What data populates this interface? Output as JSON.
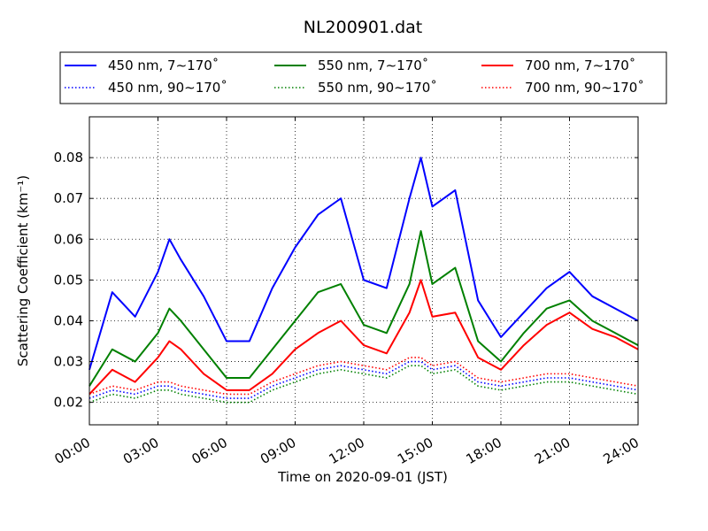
{
  "chart_data": {
    "type": "line",
    "title": "NL200901.dat",
    "xlabel": "Time on 2020-09-01 (JST)",
    "ylabel": "Scattering Coefficient (km⁻¹)",
    "xlim": [
      0,
      24
    ],
    "ylim": [
      0.0145,
      0.09
    ],
    "x_ticks": [
      "00:00",
      "03:00",
      "06:00",
      "09:00",
      "12:00",
      "15:00",
      "18:00",
      "21:00",
      "24:00"
    ],
    "y_ticks": [
      "0.02",
      "0.03",
      "0.04",
      "0.05",
      "0.06",
      "0.07",
      "0.08"
    ],
    "grid": true,
    "legend_position": "top",
    "x": [
      0,
      1,
      2,
      3,
      3.5,
      4,
      5,
      6,
      7,
      8,
      9,
      10,
      11,
      12,
      13,
      14,
      14.5,
      15,
      16,
      17,
      18,
      19,
      20,
      21,
      22,
      23,
      24
    ],
    "series": [
      {
        "name": "450 nm, 7∼170˚",
        "color": "#0000ff",
        "style": "solid",
        "values": [
          0.028,
          0.047,
          0.041,
          0.052,
          0.06,
          0.055,
          0.046,
          0.035,
          0.035,
          0.048,
          0.058,
          0.066,
          0.07,
          0.05,
          0.048,
          0.07,
          0.08,
          0.068,
          0.072,
          0.045,
          0.036,
          0.042,
          0.048,
          0.052,
          0.046,
          0.043,
          0.04
        ]
      },
      {
        "name": "550 nm, 7∼170˚",
        "color": "#008000",
        "style": "solid",
        "values": [
          0.024,
          0.033,
          0.03,
          0.037,
          0.043,
          0.04,
          0.033,
          0.026,
          0.026,
          0.033,
          0.04,
          0.047,
          0.049,
          0.039,
          0.037,
          0.049,
          0.062,
          0.049,
          0.053,
          0.035,
          0.03,
          0.037,
          0.043,
          0.045,
          0.04,
          0.037,
          0.034
        ]
      },
      {
        "name": "700 nm, 7∼170˚",
        "color": "#ff0000",
        "style": "solid",
        "values": [
          0.022,
          0.028,
          0.025,
          0.031,
          0.035,
          0.033,
          0.027,
          0.023,
          0.023,
          0.027,
          0.033,
          0.037,
          0.04,
          0.034,
          0.032,
          0.042,
          0.05,
          0.041,
          0.042,
          0.031,
          0.028,
          0.034,
          0.039,
          0.042,
          0.038,
          0.036,
          0.033
        ]
      },
      {
        "name": "450 nm, 90∼170˚",
        "color": "#0000ff",
        "style": "dotted",
        "values": [
          0.021,
          0.023,
          0.022,
          0.024,
          0.024,
          0.023,
          0.022,
          0.021,
          0.021,
          0.024,
          0.026,
          0.028,
          0.029,
          0.028,
          0.027,
          0.03,
          0.03,
          0.028,
          0.029,
          0.025,
          0.024,
          0.025,
          0.026,
          0.026,
          0.025,
          0.024,
          0.023
        ]
      },
      {
        "name": "550 nm, 90∼170˚",
        "color": "#008000",
        "style": "dotted",
        "values": [
          0.02,
          0.022,
          0.021,
          0.023,
          0.023,
          0.022,
          0.021,
          0.02,
          0.02,
          0.023,
          0.025,
          0.027,
          0.028,
          0.027,
          0.026,
          0.029,
          0.029,
          0.027,
          0.028,
          0.024,
          0.023,
          0.024,
          0.025,
          0.025,
          0.024,
          0.023,
          0.022
        ]
      },
      {
        "name": "700 nm, 90∼170˚",
        "color": "#ff0000",
        "style": "dotted",
        "values": [
          0.022,
          0.024,
          0.023,
          0.025,
          0.025,
          0.024,
          0.023,
          0.022,
          0.022,
          0.025,
          0.027,
          0.029,
          0.03,
          0.029,
          0.028,
          0.031,
          0.031,
          0.029,
          0.03,
          0.026,
          0.025,
          0.026,
          0.027,
          0.027,
          0.026,
          0.025,
          0.024
        ]
      }
    ]
  }
}
